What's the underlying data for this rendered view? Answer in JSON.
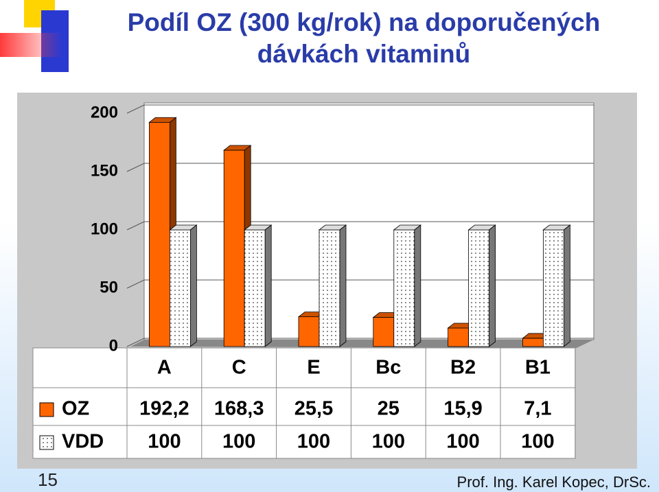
{
  "chart_data": {
    "type": "bar3d",
    "title": "Podíl OZ (300 kg/rok) na doporučených dávkách vitaminů",
    "categories": [
      "A",
      "C",
      "E",
      "Bc",
      "B2",
      "B1"
    ],
    "series": [
      {
        "name": "OZ",
        "color": "#ff6600",
        "values": [
          192.2,
          168.3,
          25.5,
          25,
          15.9,
          7.1
        ],
        "value_labels": [
          "192,2",
          "168,3",
          "25,5",
          "25",
          "15,9",
          "7,1"
        ]
      },
      {
        "name": "VDD",
        "color": "#ffffff",
        "values": [
          100,
          100,
          100,
          100,
          100,
          100
        ]
      }
    ],
    "ylim": [
      0,
      200
    ],
    "yticks": [
      0,
      50,
      100,
      150,
      200
    ],
    "grid": true
  },
  "slide_number": 15,
  "footer": "Prof. Ing. Karel Kopec, DrSc."
}
